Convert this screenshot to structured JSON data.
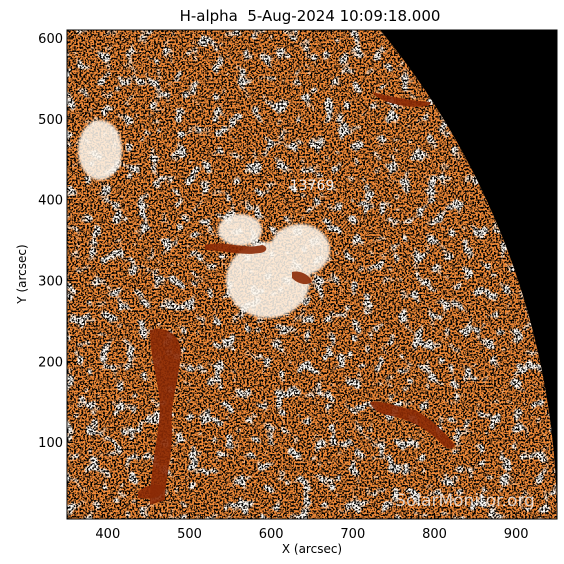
{
  "title": "H-alpha  5-Aug-2024 10:09:18.000",
  "x_axis": {
    "label": "X (arcsec)",
    "range": [
      350,
      950
    ],
    "ticks": [
      {
        "value": 400,
        "label": "400"
      },
      {
        "value": 500,
        "label": "500"
      },
      {
        "value": 600,
        "label": "600"
      },
      {
        "value": 700,
        "label": "700"
      },
      {
        "value": 800,
        "label": "800"
      },
      {
        "value": 900,
        "label": "900"
      }
    ]
  },
  "y_axis": {
    "label": "Y (arcsec)",
    "range": [
      5,
      610
    ],
    "ticks": [
      {
        "value": 100,
        "label": "100"
      },
      {
        "value": 200,
        "label": "200"
      },
      {
        "value": 300,
        "label": "300"
      },
      {
        "value": 400,
        "label": "400"
      },
      {
        "value": 500,
        "label": "500"
      },
      {
        "value": 600,
        "label": "600"
      }
    ]
  },
  "active_region": {
    "label": "13769",
    "x": 650,
    "y": 412
  },
  "watermark": "SolarMonitor.org",
  "colors": {
    "background": "#000000",
    "chromosphere": "#f08a38",
    "bright": "#fff4e6",
    "filament": "#8b2a06"
  }
}
